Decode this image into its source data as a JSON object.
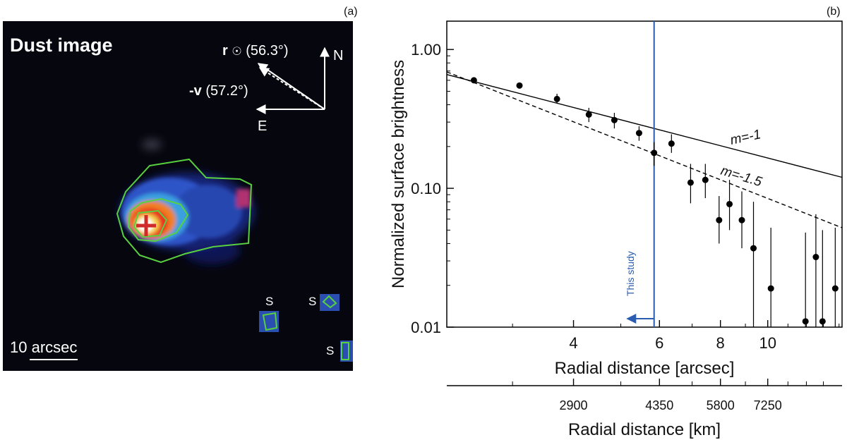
{
  "panel_a": {
    "label": "(a)",
    "title": "Dust image",
    "sun_label_r": "r",
    "sun_label_symbol": "☉",
    "sun_label_angle": "(56.3°)",
    "vel_label_v": "-v",
    "vel_label_angle": "(57.2°)",
    "compass_n": "N",
    "compass_e": "E",
    "star_marks": [
      "S",
      "S",
      "S"
    ],
    "scale_bar": "10 arcsec"
  },
  "panel_b": {
    "label": "(b)",
    "line_label_1": "m=-1",
    "line_label_2": "m=-1.5",
    "this_study": "This study"
  },
  "chart_data": [
    {
      "type": "scatter",
      "ylabel": "Normalized surface brightness",
      "xlabel": "Radial distance [arcsec]",
      "xlabel2": "Radial distance [km]",
      "xscale": "log",
      "yscale": "log",
      "xlim": [
        2.2,
        14.2
      ],
      "ylim": [
        0.01,
        1.6
      ],
      "x_ticks": [
        4,
        6,
        8,
        10
      ],
      "y_ticks": [
        1.0,
        0.1,
        0.01
      ],
      "y_tick_labels": [
        "1.00",
        "0.10",
        "0.01"
      ],
      "x2_ticks": [
        2900,
        4350,
        5800,
        7250
      ],
      "series": [
        {
          "name": "",
          "x": [
            2.5,
            3.1,
            3.7,
            4.3,
            4.85,
            5.45,
            5.85,
            6.35,
            6.95,
            7.45,
            7.95,
            8.35,
            8.85,
            9.35,
            10.15,
            11.95,
            12.55,
            12.95,
            13.75
          ],
          "y": [
            0.6,
            0.55,
            0.44,
            0.34,
            0.31,
            0.25,
            0.18,
            0.21,
            0.11,
            0.115,
            0.059,
            0.077,
            0.059,
            0.037,
            0.019,
            0.011,
            0.032,
            0.011,
            0.019
          ],
          "y_low": [
            0.6,
            0.55,
            0.41,
            0.3,
            0.27,
            0.22,
            0.145,
            0.18,
            0.078,
            0.085,
            0.04,
            0.05,
            0.037,
            0.01,
            0.01,
            0.01,
            0.01,
            0.01,
            0.01
          ],
          "y_high": [
            0.6,
            0.55,
            0.48,
            0.38,
            0.35,
            0.28,
            0.215,
            0.245,
            0.15,
            0.15,
            0.088,
            0.115,
            0.095,
            0.08,
            0.052,
            0.048,
            0.065,
            0.05,
            0.052
          ]
        }
      ],
      "lines": [
        {
          "style": "solid",
          "x": [
            2.2,
            14.2
          ],
          "y": [
            0.66,
            0.12
          ]
        },
        {
          "style": "dashed",
          "x": [
            2.2,
            14.2
          ],
          "y": [
            0.69,
            0.052
          ]
        }
      ],
      "vline": {
        "x": 5.85,
        "color": "#2a5db0"
      },
      "legend": "none",
      "grid": false
    }
  ]
}
